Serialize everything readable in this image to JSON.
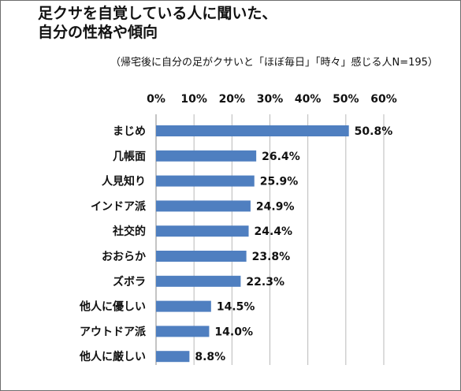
{
  "chart_data": {
    "type": "bar",
    "orientation": "horizontal",
    "title_lines": [
      "足クサを自覚している人に聞いた、",
      "自分の性格や傾向"
    ],
    "subtitle": "（帰宅後に自分の足がクサいと「ほぼ毎日」「時々」感じる人N=195）",
    "categories": [
      "まじめ",
      "几帳面",
      "人見知り",
      "インドア派",
      "社交的",
      "おおらか",
      "ズボラ",
      "他人に優しい",
      "アウトドア派",
      "他人に厳しい"
    ],
    "values": [
      50.8,
      26.4,
      25.9,
      24.9,
      24.4,
      23.8,
      22.3,
      14.5,
      14.0,
      8.8
    ],
    "value_labels": [
      "50.8%",
      "26.4%",
      "25.9%",
      "24.9%",
      "24.4%",
      "23.8%",
      "22.3%",
      "14.5%",
      "14.0%",
      "8.8%"
    ],
    "x_ticks": [
      0,
      10,
      20,
      30,
      40,
      50,
      60
    ],
    "x_tick_labels": [
      "0%",
      "10%",
      "20%",
      "30%",
      "40%",
      "50%",
      "60%"
    ],
    "xlim": [
      0,
      60
    ],
    "axis_position": "top",
    "grid": true,
    "legend": "none",
    "colors": {
      "bar": "#4f7fc0",
      "grid": "#b9b9b9",
      "frame": "#6e6e6e"
    }
  }
}
